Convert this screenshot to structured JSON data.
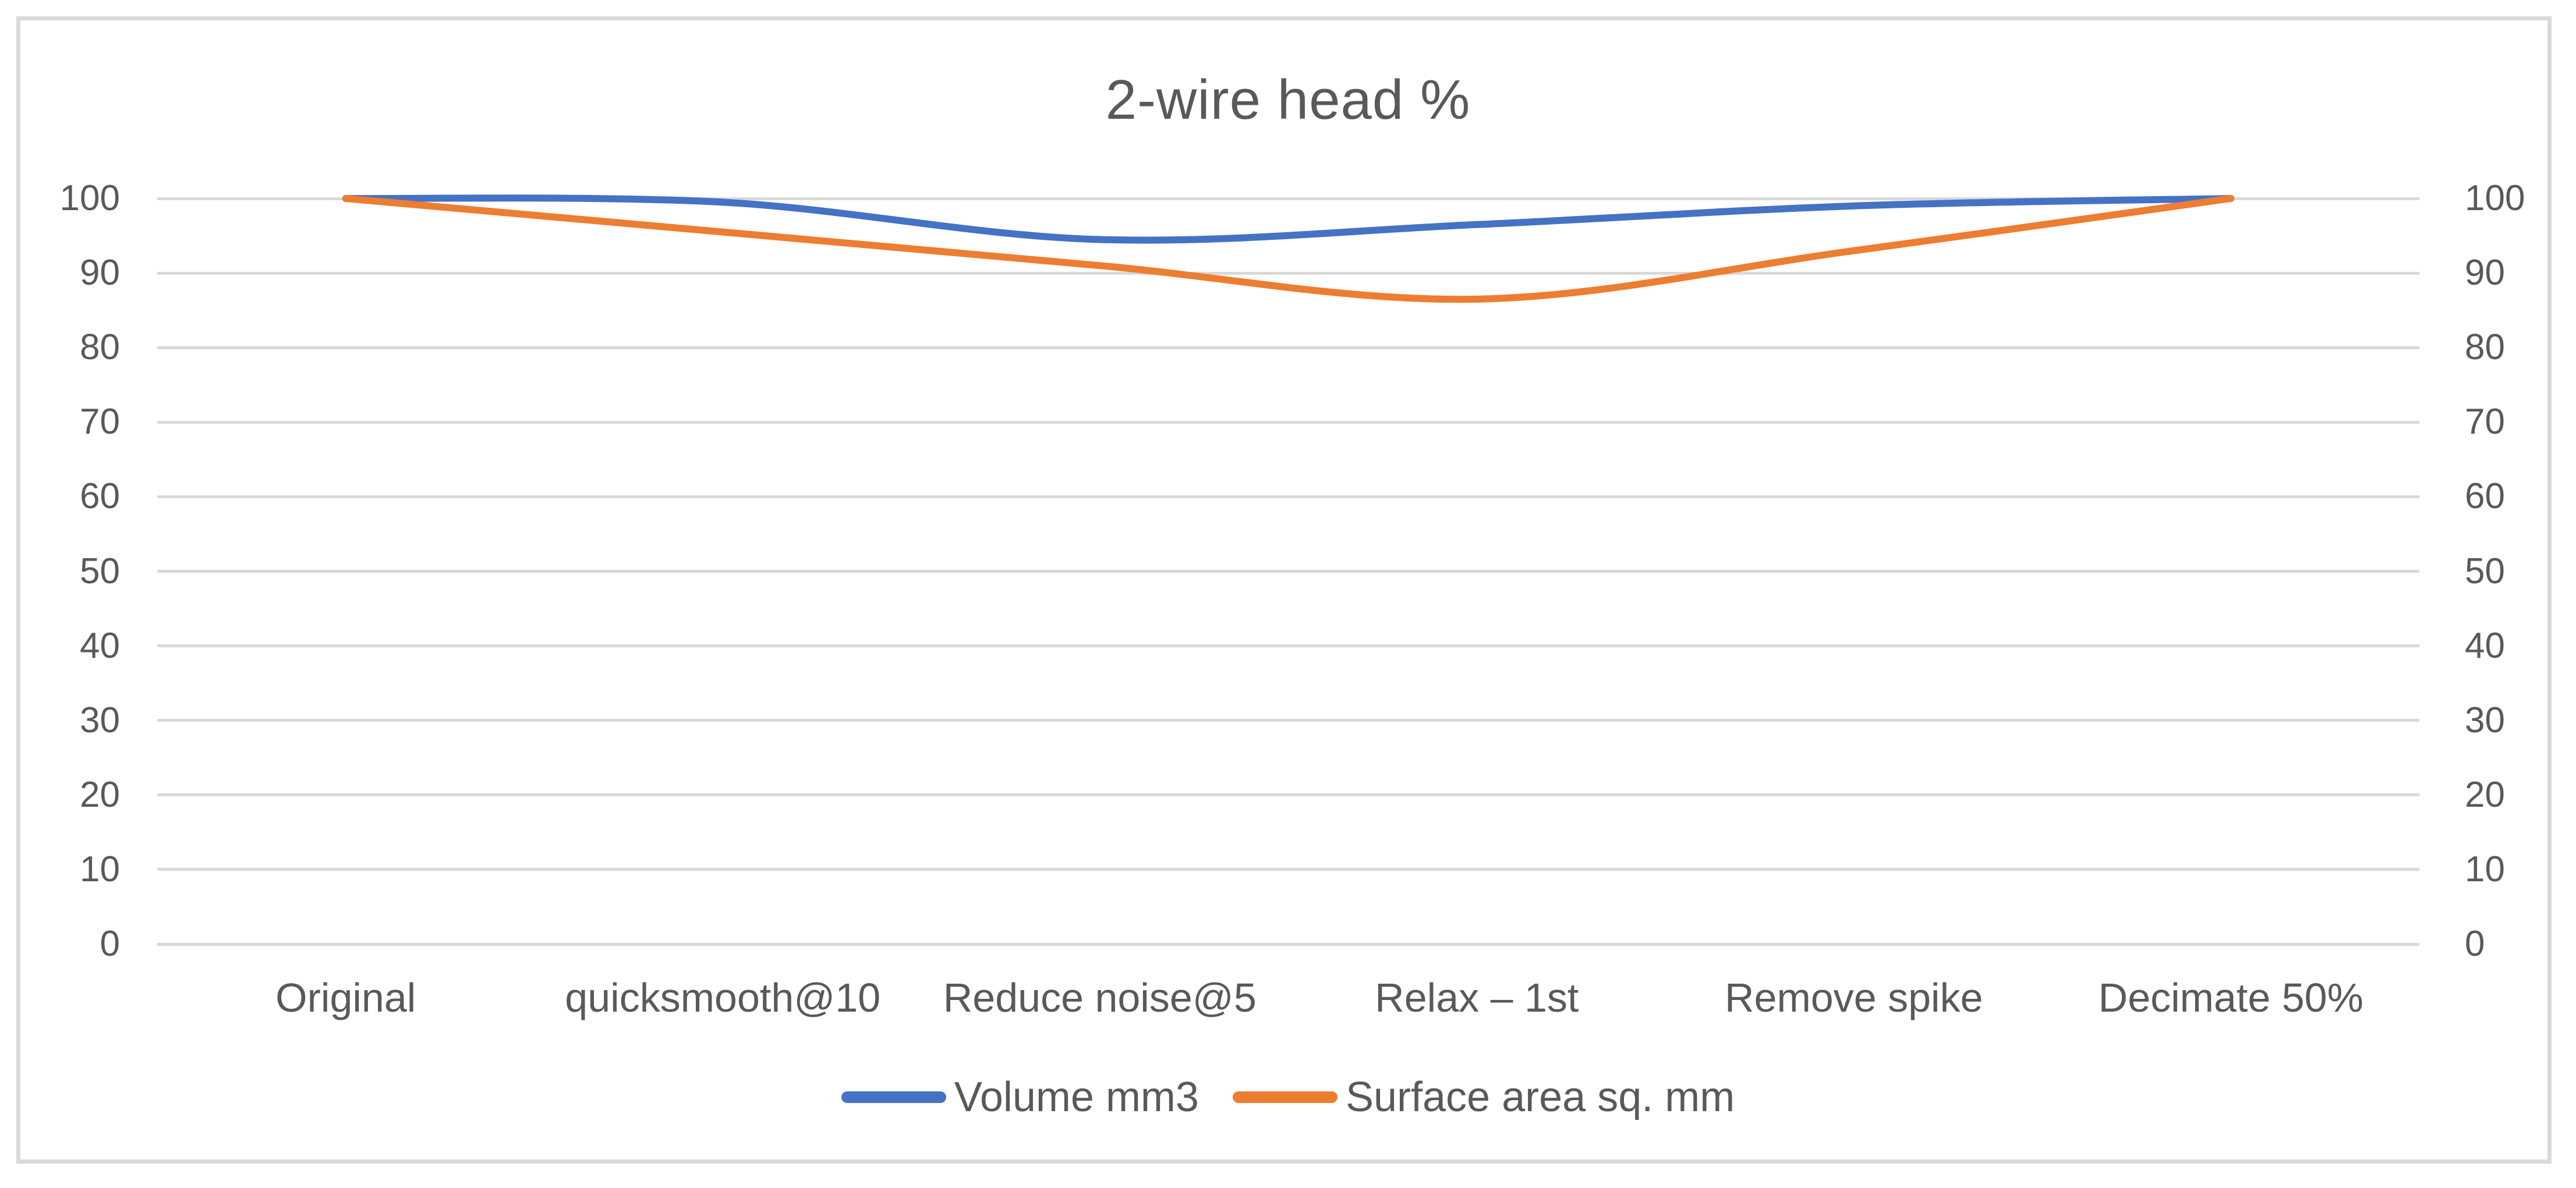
{
  "chart_data": {
    "type": "line",
    "title": "2-wire head %",
    "categories": [
      "Original",
      "quicksmooth@10",
      "Reduce noise@5",
      "Relax – 1st",
      "Remove spike",
      "Decimate 50%"
    ],
    "series": [
      {
        "name": "Volume mm3",
        "color": "#4472C4",
        "values": [
          100,
          99.5,
          94.5,
          96.5,
          99,
          100
        ]
      },
      {
        "name": "Surface area sq. mm",
        "color": "#ED7D31",
        "values": [
          100,
          95.5,
          91,
          86.5,
          93,
          100
        ]
      }
    ],
    "xlabel": "",
    "ylabel": "",
    "y_axis": {
      "min": 0,
      "max": 100,
      "step": 10,
      "ticks": [
        0,
        10,
        20,
        30,
        40,
        50,
        60,
        70,
        80,
        90,
        100
      ],
      "sides": [
        "left",
        "right"
      ]
    },
    "grid": true,
    "smoothed": true,
    "legend_position": "bottom",
    "colors": {
      "title_text": "#595959",
      "axis_text": "#595959",
      "gridline": "#D9D9D9",
      "frame_border": "#D9D9D9",
      "background": "#FFFFFF"
    }
  }
}
